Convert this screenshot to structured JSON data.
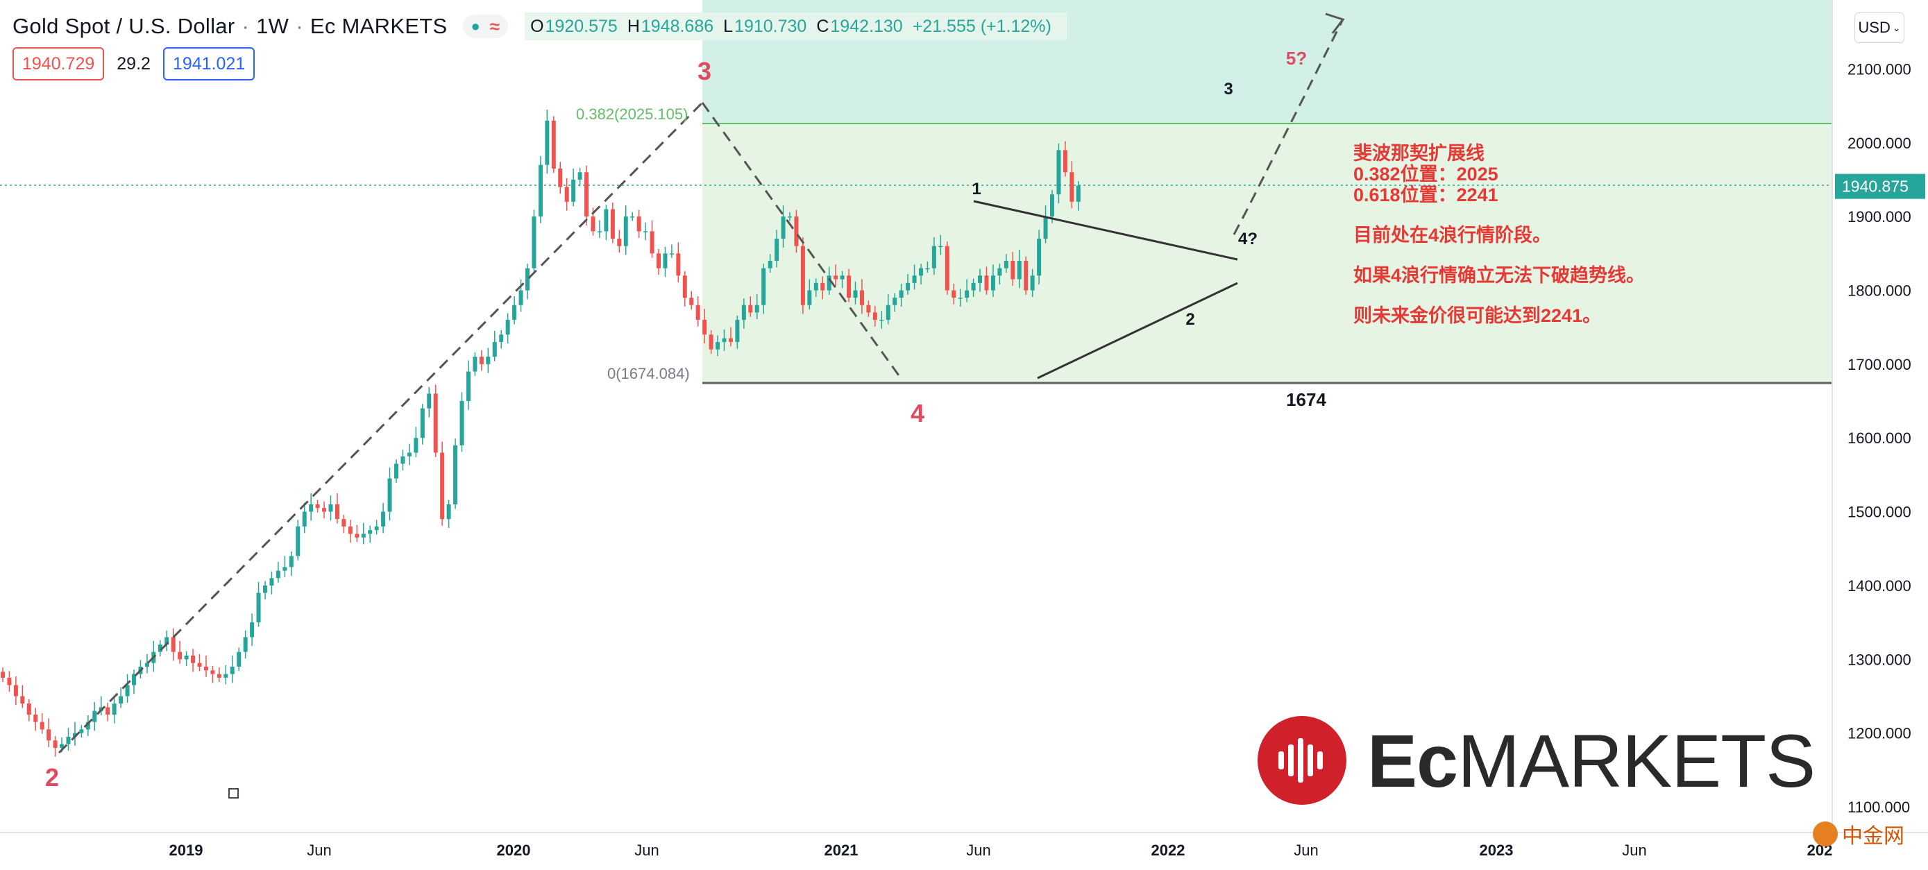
{
  "header": {
    "symbol_name": "Gold Spot / U.S. Dollar",
    "interval": "1W",
    "broker": "Ec MARKETS",
    "ohlc": {
      "open_label": "O",
      "open": "1920.575",
      "high_label": "H",
      "high": "1948.686",
      "low_label": "L",
      "low": "1910.730",
      "close_label": "C",
      "close": "1942.130",
      "change": "+21.555 (+1.12%)"
    },
    "sell_price": "1940.729",
    "spread": "29.2",
    "buy_price": "1941.021",
    "currency_selector": "USD"
  },
  "colors": {
    "up": "#26a69a",
    "down": "#ef5350",
    "wave_label": "#e04a60",
    "annotation": "#e53935",
    "fib_band_upper": "#d2efe8",
    "fib_band_lower": "#e6f4e4",
    "fib_line": "#66bb6a",
    "price_line": "#26a69a"
  },
  "annotations": {
    "lines": [
      "斐波那契扩展线",
      "0.382位置：2025",
      "0.618位置：2241",
      "目前处在4浪行情阶段。",
      "如果4浪行情确立无法下破趋势线。",
      "则未来金价很可能达到2241。"
    ]
  },
  "branding": {
    "ec_logo_icon": "waveform-icon",
    "ec_text_bold": "Ec",
    "ec_text_regular": "MARKETS",
    "cn_logo_text": "中金网"
  },
  "chart_data": {
    "type": "candlestick",
    "title": "Gold Spot / U.S. Dollar",
    "interval": "1W",
    "ylim": [
      1090,
      2190
    ],
    "y_ticks": [
      "2100.000",
      "2000.000",
      "1900.000",
      "1800.000",
      "1700.000",
      "1600.000",
      "1500.000",
      "1400.000",
      "1300.000",
      "1200.000",
      "1100.000"
    ],
    "x_ticks": [
      "2019",
      "Jun",
      "2020",
      "Jun",
      "2021",
      "Jun",
      "2022",
      "Jun",
      "2023",
      "Jun",
      "202"
    ],
    "current_price_label": "1940.875",
    "fib_levels": [
      {
        "label": "0.382(2025.105)",
        "value": 2025.105
      },
      {
        "label": "0(1674.084)",
        "value": 1674.084
      }
    ],
    "fib_projection_top": 2241,
    "support_label": "1674",
    "wave_labels": [
      "2",
      "3",
      "4",
      "1",
      "2",
      "3",
      "4?",
      "5?"
    ],
    "grid": false,
    "legend": "none",
    "weekly_closes": [
      1275,
      1265,
      1250,
      1240,
      1225,
      1215,
      1205,
      1190,
      1180,
      1185,
      1195,
      1200,
      1205,
      1215,
      1230,
      1235,
      1225,
      1240,
      1250,
      1265,
      1280,
      1290,
      1295,
      1310,
      1320,
      1330,
      1310,
      1300,
      1305,
      1295,
      1290,
      1285,
      1280,
      1275,
      1280,
      1290,
      1310,
      1330,
      1350,
      1390,
      1400,
      1410,
      1420,
      1425,
      1440,
      1480,
      1500,
      1510,
      1505,
      1500,
      1510,
      1490,
      1480,
      1470,
      1465,
      1470,
      1475,
      1480,
      1500,
      1545,
      1565,
      1575,
      1580,
      1600,
      1640,
      1660,
      1580,
      1490,
      1510,
      1590,
      1650,
      1690,
      1710,
      1700,
      1710,
      1730,
      1740,
      1760,
      1780,
      1800,
      1830,
      1900,
      1970,
      2030,
      1965,
      1940,
      1920,
      1950,
      1960,
      1900,
      1880,
      1880,
      1910,
      1870,
      1860,
      1900,
      1900,
      1880,
      1880,
      1850,
      1830,
      1850,
      1850,
      1820,
      1790,
      1780,
      1760,
      1740,
      1720,
      1730,
      1735,
      1730,
      1760,
      1780,
      1770,
      1780,
      1830,
      1840,
      1870,
      1900,
      1900,
      1860,
      1780,
      1800,
      1810,
      1800,
      1820,
      1815,
      1820,
      1790,
      1800,
      1780,
      1770,
      1760,
      1760,
      1780,
      1790,
      1800,
      1810,
      1820,
      1830,
      1830,
      1860,
      1860,
      1800,
      1790,
      1790,
      1800,
      1810,
      1820,
      1800,
      1820,
      1830,
      1840,
      1815,
      1840,
      1800,
      1820,
      1870,
      1900,
      1930,
      1990,
      1960,
      1920,
      1942
    ]
  }
}
